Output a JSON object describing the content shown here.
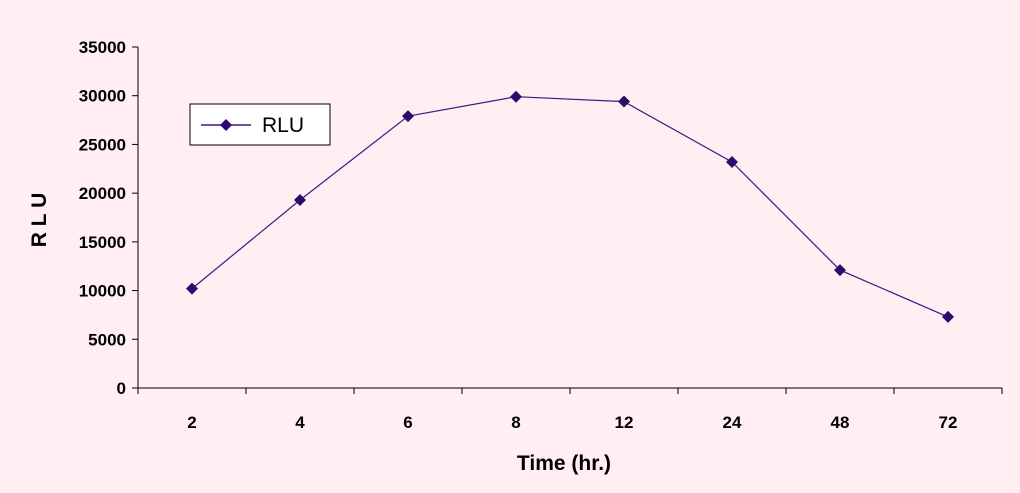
{
  "chart_data": {
    "type": "line",
    "categories": [
      "2",
      "4",
      "6",
      "8",
      "12",
      "24",
      "48",
      "72"
    ],
    "series": [
      {
        "name": "RLU",
        "values": [
          10200,
          19300,
          27900,
          29900,
          29400,
          23200,
          12100,
          7300
        ]
      }
    ],
    "xlabel": "Time (hr.)",
    "ylabel": "R L U",
    "ylim": [
      0,
      35000
    ],
    "yticks": [
      0,
      5000,
      10000,
      15000,
      20000,
      25000,
      30000,
      35000
    ],
    "grid": false,
    "legend": "top-left",
    "colors": {
      "background": "#ffeef2",
      "line": "#3b1a8a",
      "marker": "#2e0a6e",
      "axis": "#000000"
    }
  }
}
